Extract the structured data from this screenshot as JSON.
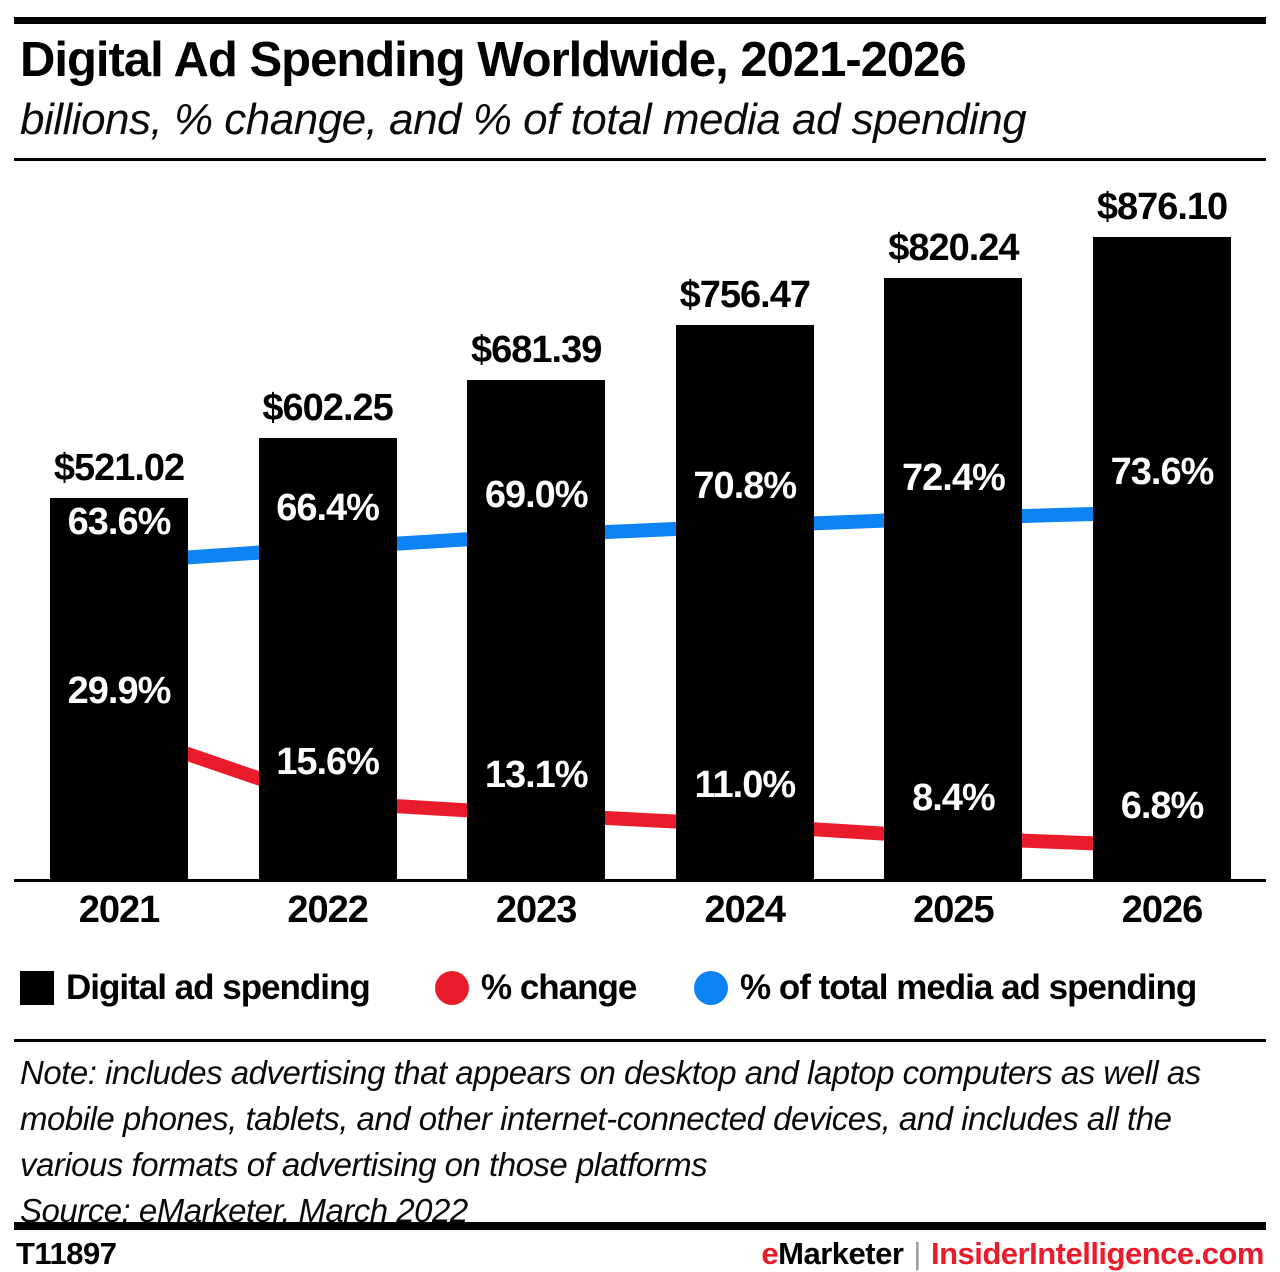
{
  "header": {
    "title": "Digital Ad Spending Worldwide, 2021-2026",
    "subtitle": "billions, % change, and % of total media ad spending"
  },
  "chart_data": {
    "type": "bar",
    "title": "Digital Ad Spending Worldwide, 2021-2026",
    "subtitle": "billions, % change, and % of total media ad spending",
    "categories": [
      "2021",
      "2022",
      "2023",
      "2024",
      "2025",
      "2026"
    ],
    "series": [
      {
        "name": "Digital ad spending",
        "type": "bar",
        "unit": "billions of USD",
        "color": "#000000",
        "values": [
          521.02,
          602.25,
          681.39,
          756.47,
          820.24,
          876.1
        ],
        "labels": [
          "$521.02",
          "$602.25",
          "$681.39",
          "$756.47",
          "$820.24",
          "$876.10"
        ]
      },
      {
        "name": "% change",
        "type": "line",
        "unit": "percent",
        "color": "#ea1c2c",
        "values": [
          29.9,
          15.6,
          13.1,
          11.0,
          8.4,
          6.8
        ],
        "labels": [
          "29.9%",
          "15.6%",
          "13.1%",
          "11.0%",
          "8.4%",
          "6.8%"
        ]
      },
      {
        "name": "% of total media ad spending",
        "type": "line",
        "unit": "percent",
        "color": "#0d83f4",
        "values": [
          63.6,
          66.4,
          69.0,
          70.8,
          72.4,
          73.6
        ],
        "labels": [
          "63.6%",
          "66.4%",
          "69.0%",
          "70.8%",
          "72.4%",
          "73.6%"
        ]
      }
    ],
    "xlabel": "",
    "ylabel": "",
    "grid": false,
    "legend_position": "bottom"
  },
  "legend": {
    "items": [
      {
        "label": "Digital ad spending",
        "color": "#000000",
        "shape": "square"
      },
      {
        "label": "% change",
        "color": "#ea1c2c",
        "shape": "circle"
      },
      {
        "label": "% of total media ad spending",
        "color": "#0d83f4",
        "shape": "circle"
      }
    ]
  },
  "note": {
    "text": "Note: includes advertising that appears on desktop and laptop computers as well as mobile phones, tablets, and other internet-connected devices, and includes all the various formats of advertising on those platforms",
    "source": "Source: eMarketer, March 2022"
  },
  "footer": {
    "chart_id": "T11897",
    "brand_prefix": "e",
    "brand_name": "Marketer",
    "separator": "|",
    "site": "InsiderIntelligence.com"
  },
  "colors": {
    "accent_red": "#ea1c2c",
    "accent_blue": "#0d83f4",
    "bar_black": "#000000"
  }
}
